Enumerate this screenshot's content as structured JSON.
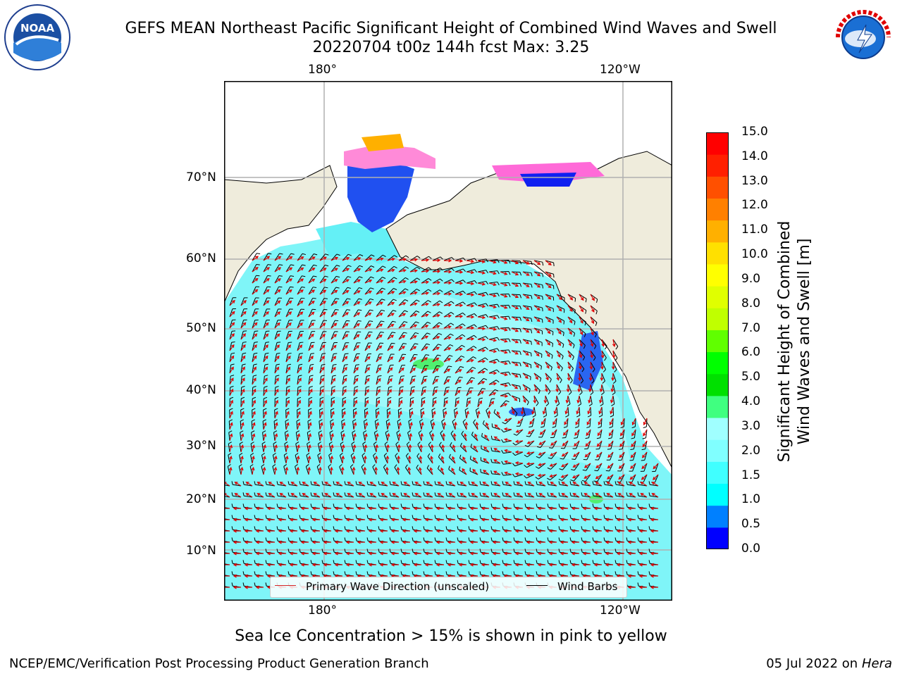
{
  "title": {
    "line1": "GEFS MEAN Northeast Pacific Significant Height of Combined Wind Waves and Swell",
    "line2": "20220704 t00z 144h fcst   Max: 3.25"
  },
  "logos": {
    "left": "NOAA",
    "right": "NATIONAL WEATHER SERVICE"
  },
  "map": {
    "lon_labels": [
      "180°",
      "120°W"
    ],
    "lat_labels": [
      "70°N",
      "60°N",
      "50°N",
      "40°N",
      "30°N",
      "20°N",
      "10°N"
    ],
    "colors": {
      "land": "#efecdc",
      "ocean_field": "#7ff5f8",
      "coast": "#000000",
      "arrows": "#e00000",
      "barbs": "#000000",
      "grid": "#b0b0b0"
    },
    "legend": {
      "wave_label": "Primary Wave Direction (unscaled)",
      "wind_label": "Wind Barbs",
      "wave_color": "#d62728",
      "wind_color": "#000000"
    }
  },
  "colorbar": {
    "label_line1": "Significant Height of Combined",
    "label_line2": "Wind Waves and Swell [m]",
    "ticks": [
      "15.0",
      "14.0",
      "13.0",
      "12.0",
      "11.0",
      "10.0",
      "9.0",
      "8.0",
      "7.0",
      "6.0",
      "5.0",
      "4.0",
      "3.0",
      "2.0",
      "1.5",
      "1.0",
      "0.5",
      "0.0"
    ],
    "colors": [
      "#0000ff",
      "#0080ff",
      "#00ffff",
      "#40ffff",
      "#80ffff",
      "#a0ffff",
      "#40ff80",
      "#00e000",
      "#00ff00",
      "#60ff00",
      "#c0ff00",
      "#e0ff00",
      "#ffff00",
      "#ffe000",
      "#ffb000",
      "#ff8000",
      "#ff5000",
      "#ff2000",
      "#ff0000"
    ]
  },
  "caption": "Sea Ice Concentration > 15% is shown in pink to yellow",
  "footer": {
    "left": "NCEP/EMC/Verification Post Processing Product Generation Branch",
    "date": "05 Jul 2022 on ",
    "machine": "Hera"
  }
}
